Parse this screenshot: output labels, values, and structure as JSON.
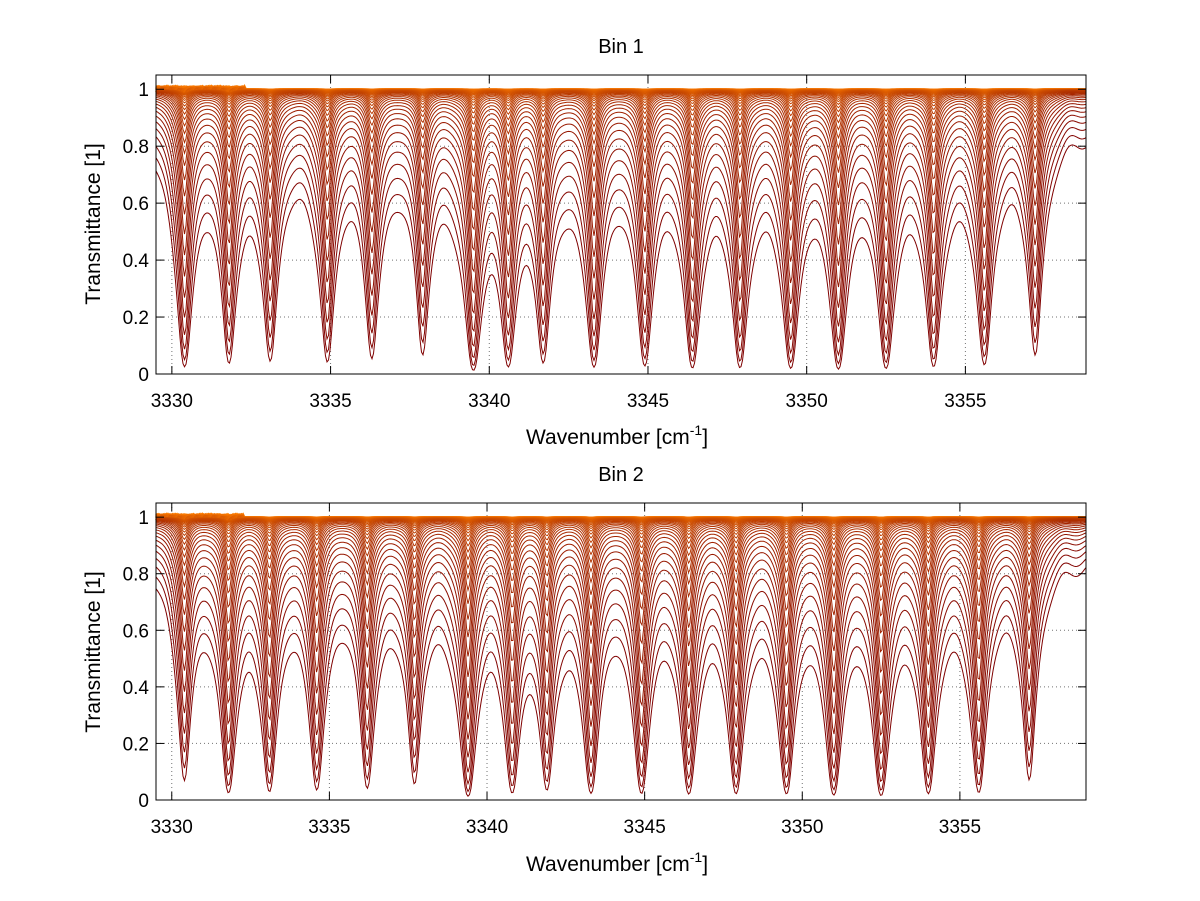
{
  "chart_data": [
    {
      "type": "line",
      "title": "Bin 1",
      "xlabel": "Wavenumber [cm",
      "xlabel_sup": "-1",
      "xlabel_end": "]",
      "ylabel": "Transmittance [1]",
      "xlim": [
        3329.5,
        3358.8
      ],
      "ylim": [
        0,
        1.05
      ],
      "xticks": [
        3330,
        3335,
        3340,
        3345,
        3350,
        3355
      ],
      "xtick_labels": [
        "3330",
        "3335",
        "3340",
        "3345",
        "3350",
        "3355"
      ],
      "yticks": [
        0,
        0.2,
        0.4,
        0.6,
        0.8,
        1
      ],
      "ytick_labels": [
        "0",
        "0.2",
        "0.4",
        "0.6",
        "0.8",
        "1"
      ],
      "grid": true,
      "num_series": 40,
      "series_color_range": [
        "#ff7f00",
        "#7f0000"
      ],
      "absorption_lines": [
        3330.4,
        3331.8,
        3333.1,
        3334.9,
        3336.3,
        3337.9,
        3339.5,
        3340.6,
        3341.7,
        3343.3,
        3344.9,
        3346.4,
        3347.9,
        3349.5,
        3351.0,
        3352.5,
        3354.0,
        3355.6,
        3357.2
      ],
      "line_strengths": [
        0.85,
        0.75,
        0.7,
        0.72,
        0.65,
        0.6,
        1.0,
        0.8,
        0.72,
        0.85,
        0.8,
        0.88,
        0.88,
        0.9,
        0.92,
        0.9,
        0.85,
        0.8,
        0.62
      ]
    },
    {
      "type": "line",
      "title": "Bin 2",
      "xlabel": "Wavenumber [cm",
      "xlabel_sup": "-1",
      "xlabel_end": "]",
      "ylabel": "Transmittance [1]",
      "xlim": [
        3329.5,
        3359.0
      ],
      "ylim": [
        0,
        1.05
      ],
      "xticks": [
        3330,
        3335,
        3340,
        3345,
        3350,
        3355
      ],
      "xtick_labels": [
        "3330",
        "3335",
        "3340",
        "3345",
        "3350",
        "3355"
      ],
      "yticks": [
        0,
        0.2,
        0.4,
        0.6,
        0.8,
        1
      ],
      "ytick_labels": [
        "0",
        "0.2",
        "0.4",
        "0.6",
        "0.8",
        "1"
      ],
      "grid": true,
      "num_series": 40,
      "series_color_range": [
        "#ff7f00",
        "#7f0000"
      ],
      "absorption_lines": [
        3330.4,
        3331.8,
        3333.1,
        3334.6,
        3336.2,
        3337.7,
        3339.4,
        3340.8,
        3341.9,
        3343.3,
        3344.9,
        3346.4,
        3347.9,
        3349.5,
        3351.0,
        3352.5,
        3354.0,
        3355.6,
        3357.2
      ],
      "line_strengths": [
        0.6,
        0.85,
        0.8,
        0.75,
        0.72,
        0.65,
        1.0,
        0.82,
        0.75,
        0.85,
        0.85,
        0.88,
        0.88,
        0.88,
        0.92,
        0.95,
        0.88,
        0.85,
        0.6
      ]
    }
  ]
}
